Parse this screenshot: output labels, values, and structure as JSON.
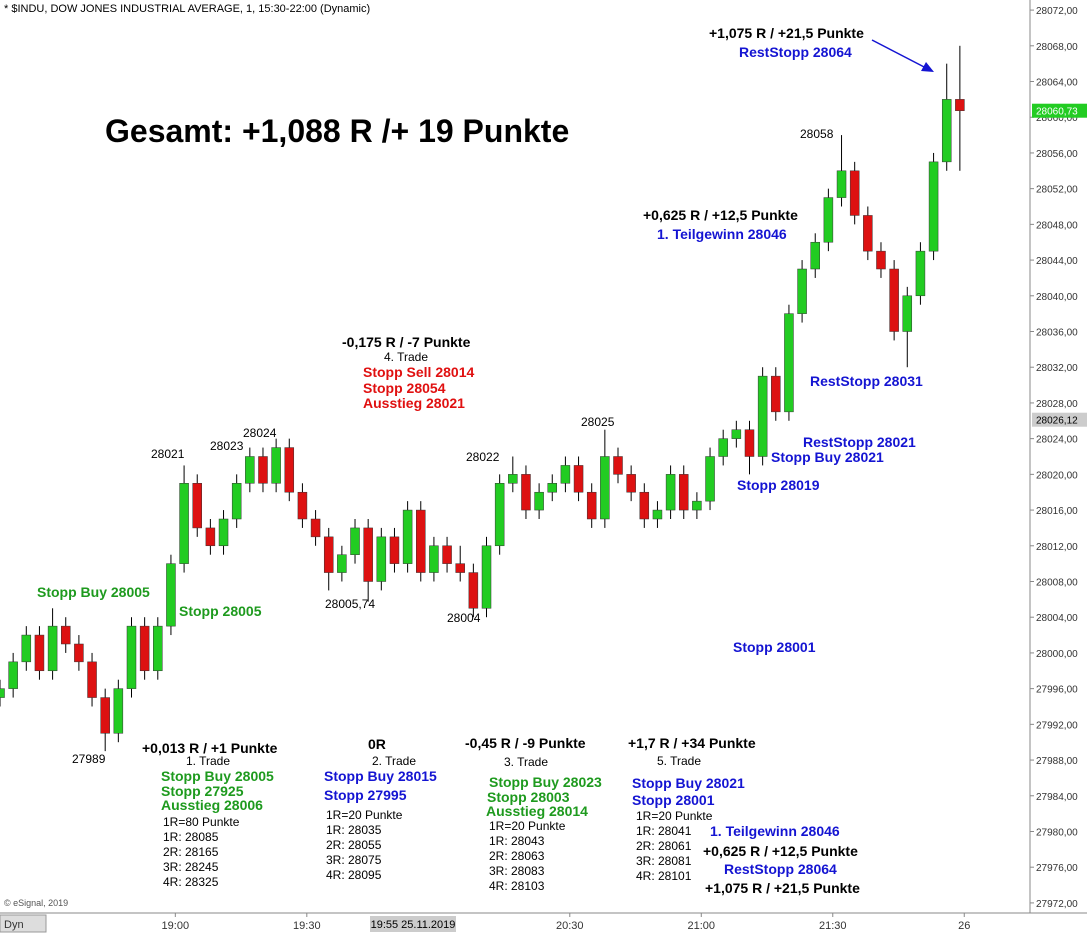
{
  "chart_data": {
    "type": "candlestick",
    "header": "* $INDU, DOW JONES INDUSTRIAL AVERAGE, 1, 15:30-22:00 (Dynamic)",
    "footer": "© eSignal, 2019",
    "button": "Dyn",
    "cursor_label": "19:55 25.11.2019",
    "up_color": "#22cc22",
    "down_color": "#dd1111",
    "xlim": [
      1100,
      1335
    ],
    "ylim": [
      27970.87,
      28073.13
    ],
    "xticks": [
      {
        "value": 1140,
        "label": "19:00"
      },
      {
        "value": 1170,
        "label": "19:30"
      },
      {
        "value": 1230,
        "label": "20:30"
      },
      {
        "value": 1260,
        "label": "21:00"
      },
      {
        "value": 1290,
        "label": "21:30"
      },
      {
        "value": 1320,
        "label": "26"
      }
    ],
    "yticks": [
      {
        "value": 28072,
        "label": "28072,00"
      },
      {
        "value": 28068,
        "label": "28068,00"
      },
      {
        "value": 28064,
        "label": "28064,00"
      },
      {
        "value": 28060,
        "label": "28060,00"
      },
      {
        "value": 28056,
        "label": "28056,00"
      },
      {
        "value": 28052,
        "label": "28052,00"
      },
      {
        "value": 28048,
        "label": "28048,00"
      },
      {
        "value": 28044,
        "label": "28044,00"
      },
      {
        "value": 28040,
        "label": "28040,00"
      },
      {
        "value": 28036,
        "label": "28036,00"
      },
      {
        "value": 28032,
        "label": "28032,00"
      },
      {
        "value": 28028,
        "label": "28028,00"
      },
      {
        "value": 28024,
        "label": "28024,00"
      },
      {
        "value": 28020,
        "label": "28020,00"
      },
      {
        "value": 28016,
        "label": "28016,00"
      },
      {
        "value": 28012,
        "label": "28012,00"
      },
      {
        "value": 28008,
        "label": "28008,00"
      },
      {
        "value": 28004,
        "label": "28004,00"
      },
      {
        "value": 28000,
        "label": "28000,00"
      },
      {
        "value": 27996,
        "label": "27996,00"
      },
      {
        "value": 27992,
        "label": "27992,00"
      },
      {
        "value": 27988,
        "label": "27988,00"
      },
      {
        "value": 27984,
        "label": "27984,00"
      },
      {
        "value": 27980,
        "label": "27980,00"
      },
      {
        "value": 27976,
        "label": "27976,00"
      },
      {
        "value": 27972,
        "label": "27972,00"
      }
    ],
    "last_price": {
      "value": 28060.73,
      "label": "28060,73",
      "color": "#22cc22"
    },
    "marker_price": {
      "value": 28026.12,
      "label": "28026,12",
      "color": "#cccccc"
    },
    "x": [
      1100,
      1103,
      1106,
      1109,
      1112,
      1115,
      1118,
      1121,
      1124,
      1127,
      1130,
      1133,
      1136,
      1139,
      1142,
      1145,
      1148,
      1151,
      1154,
      1157,
      1160,
      1163,
      1166,
      1169,
      1172,
      1175,
      1178,
      1181,
      1184,
      1187,
      1190,
      1193,
      1196,
      1199,
      1202,
      1205,
      1208,
      1211,
      1214,
      1217,
      1220,
      1223,
      1226,
      1229,
      1232,
      1235,
      1238,
      1241,
      1244,
      1247,
      1250,
      1253,
      1256,
      1259,
      1262,
      1265,
      1268,
      1271,
      1274,
      1277,
      1280,
      1283,
      1286,
      1289,
      1292,
      1295,
      1298,
      1301,
      1304,
      1307,
      1310,
      1313,
      1316,
      1319
    ],
    "ohlc": [
      [
        27995,
        27997,
        27994,
        27996
      ],
      [
        27996,
        28000,
        27995,
        27999
      ],
      [
        27999,
        28003,
        27998,
        28002
      ],
      [
        28002,
        28003,
        27997,
        27998
      ],
      [
        27998,
        28005,
        27997,
        28003
      ],
      [
        28003,
        28004,
        28000,
        28001
      ],
      [
        28001,
        28002,
        27998,
        27999
      ],
      [
        27999,
        28000,
        27994,
        27995
      ],
      [
        27995,
        27996,
        27989,
        27991
      ],
      [
        27991,
        27997,
        27990,
        27996
      ],
      [
        27996,
        28004,
        27995,
        28003
      ],
      [
        28003,
        28004,
        27997,
        27998
      ],
      [
        27998,
        28004,
        27997,
        28003
      ],
      [
        28003,
        28011,
        28002,
        28010
      ],
      [
        28010,
        28021,
        28009,
        28019
      ],
      [
        28019,
        28020,
        28013,
        28014
      ],
      [
        28014,
        28015,
        28011,
        28012
      ],
      [
        28012,
        28016,
        28011,
        28015
      ],
      [
        28015,
        28020,
        28014,
        28019
      ],
      [
        28019,
        28023,
        28018,
        28022
      ],
      [
        28022,
        28023,
        28018,
        28019
      ],
      [
        28019,
        28024,
        28018,
        28023
      ],
      [
        28023,
        28024,
        28017,
        28018
      ],
      [
        28018,
        28019,
        28014,
        28015
      ],
      [
        28015,
        28016,
        28012,
        28013
      ],
      [
        28013,
        28014,
        28007,
        28009
      ],
      [
        28009,
        28012,
        28008,
        28011
      ],
      [
        28011,
        28015,
        28010,
        28014
      ],
      [
        28014,
        28015,
        28005.74,
        28008
      ],
      [
        28008,
        28014,
        28007,
        28013
      ],
      [
        28013,
        28014,
        28009,
        28010
      ],
      [
        28010,
        28017,
        28009,
        28016
      ],
      [
        28016,
        28017,
        28008,
        28009
      ],
      [
        28009,
        28013,
        28008,
        28012
      ],
      [
        28012,
        28013,
        28009,
        28010
      ],
      [
        28010,
        28012,
        28008,
        28009
      ],
      [
        28009,
        28010,
        28004,
        28005
      ],
      [
        28005,
        28013,
        28004,
        28012
      ],
      [
        28012,
        28020,
        28011,
        28019
      ],
      [
        28019,
        28022,
        28018,
        28020
      ],
      [
        28020,
        28021,
        28015,
        28016
      ],
      [
        28016,
        28019,
        28015,
        28018
      ],
      [
        28018,
        28020,
        28017,
        28019
      ],
      [
        28019,
        28022,
        28018,
        28021
      ],
      [
        28021,
        28022,
        28017,
        28018
      ],
      [
        28018,
        28019,
        28014,
        28015
      ],
      [
        28015,
        28025,
        28014,
        28022
      ],
      [
        28022,
        28023,
        28019,
        28020
      ],
      [
        28020,
        28021,
        28017,
        28018
      ],
      [
        28018,
        28019,
        28014,
        28015
      ],
      [
        28015,
        28017,
        28014,
        28016
      ],
      [
        28016,
        28021,
        28015,
        28020
      ],
      [
        28020,
        28021,
        28015,
        28016
      ],
      [
        28016,
        28018,
        28015,
        28017
      ],
      [
        28017,
        28023,
        28016,
        28022
      ],
      [
        28022,
        28025,
        28021,
        28024
      ],
      [
        28024,
        28026,
        28023,
        28025
      ],
      [
        28025,
        28026,
        28020,
        28022
      ],
      [
        28022,
        28032,
        28021,
        28031
      ],
      [
        28031,
        28032,
        28026,
        28027
      ],
      [
        28027,
        28039,
        28026,
        28038
      ],
      [
        28038,
        28044,
        28037,
        28043
      ],
      [
        28043,
        28047,
        28042,
        28046
      ],
      [
        28046,
        28052,
        28045,
        28051
      ],
      [
        28051,
        28058,
        28050,
        28054
      ],
      [
        28054,
        28055,
        28048,
        28049
      ],
      [
        28049,
        28050,
        28044,
        28045
      ],
      [
        28045,
        28046,
        28042,
        28043
      ],
      [
        28043,
        28044,
        28035,
        28036
      ],
      [
        28036,
        28041,
        28032,
        28040
      ],
      [
        28040,
        28046,
        28039,
        28045
      ],
      [
        28045,
        28056,
        28044,
        28055
      ],
      [
        28055,
        28066,
        28054,
        28062
      ],
      [
        28062,
        28068,
        28054,
        28060.73
      ]
    ],
    "annotations": [
      "Gesamt: +1,088 R /+ 19 Punkte",
      "+1,075 R / +21,5 Punkte",
      "RestStopp 28064",
      "28058",
      "+0,625 R / +12,5 Punkte",
      "1. Teilgewinn 28046",
      "-0,175 R / -7 Punkte",
      "4. Trade",
      "Stopp Sell 28014",
      "Stopp 28054",
      "Ausstieg 28021",
      "RestStopp 28031",
      "28024",
      "28023",
      "28021",
      "28022",
      "28025",
      "RestStopp 28021",
      "Stopp Buy 28021",
      "Stopp 28019",
      "Stopp Buy 28005",
      "Stopp 28005",
      "28005,74",
      "28004",
      "Stopp 28001",
      "27989",
      "+0,013 R / +1 Punkte",
      "1. Trade",
      "Stopp Buy 28005",
      "Stopp 27925",
      "Ausstieg 28006",
      "1R=80 Punkte",
      "1R: 28085",
      "2R: 28165",
      "3R: 28245",
      "4R: 28325",
      "0R",
      "2. Trade",
      "Stopp Buy 28015",
      "Stopp 27995",
      "1R=20 Punkte",
      "1R: 28035",
      "2R: 28055",
      "3R: 28075",
      "4R: 28095",
      "-0,45 R / -9 Punkte",
      "3. Trade",
      "Stopp Buy 28023",
      "Stopp 28003",
      "Ausstieg 28014",
      "1R=20 Punkte",
      "1R: 28043",
      "2R: 28063",
      "3R: 28083",
      "4R: 28103",
      "+1,7 R / +34 Punkte",
      "5. Trade",
      "Stopp Buy 28021",
      "Stopp 28001",
      "1R=20 Punkte",
      "1R: 28041",
      "2R: 28061",
      "3R: 28081",
      "4R: 28101",
      "1. Teilgewinn 28046",
      "+0,625 R / +12,5 Punkte",
      "RestStopp 28064",
      "+1,075 R / +21,5 Punkte"
    ]
  }
}
